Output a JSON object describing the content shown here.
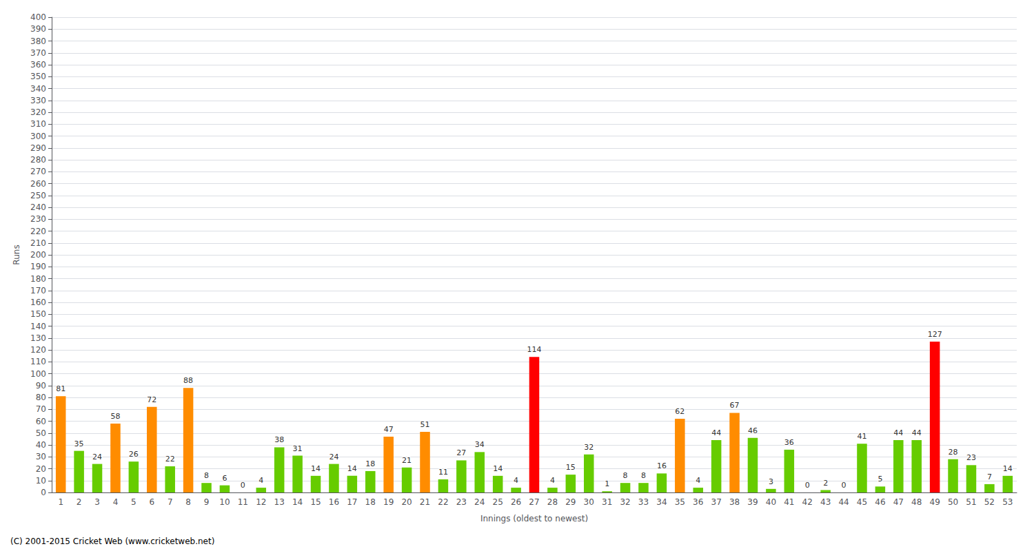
{
  "chart_data": {
    "type": "bar",
    "categories": [
      1,
      2,
      3,
      4,
      5,
      6,
      7,
      8,
      9,
      10,
      11,
      12,
      13,
      14,
      15,
      16,
      17,
      18,
      19,
      20,
      21,
      22,
      23,
      24,
      25,
      26,
      27,
      28,
      29,
      30,
      31,
      32,
      33,
      34,
      35,
      36,
      37,
      38,
      39,
      40,
      41,
      42,
      43,
      44,
      45,
      46,
      47,
      48,
      49,
      50,
      51,
      52,
      53
    ],
    "values": [
      81,
      35,
      24,
      58,
      26,
      72,
      22,
      88,
      8,
      6,
      0,
      4,
      38,
      31,
      14,
      24,
      14,
      18,
      47,
      21,
      51,
      11,
      27,
      34,
      14,
      4,
      114,
      4,
      15,
      32,
      1,
      8,
      8,
      16,
      62,
      4,
      44,
      67,
      46,
      3,
      36,
      0,
      2,
      0,
      41,
      5,
      44,
      44,
      127,
      28,
      23,
      7,
      14
    ],
    "colors": [
      "#ff8c00",
      "#66cc00",
      "#66cc00",
      "#ff8c00",
      "#66cc00",
      "#ff8c00",
      "#66cc00",
      "#ff8c00",
      "#66cc00",
      "#66cc00",
      "#66cc00",
      "#66cc00",
      "#66cc00",
      "#66cc00",
      "#66cc00",
      "#66cc00",
      "#66cc00",
      "#66cc00",
      "#ff8c00",
      "#66cc00",
      "#ff8c00",
      "#66cc00",
      "#66cc00",
      "#66cc00",
      "#66cc00",
      "#66cc00",
      "#ff0000",
      "#66cc00",
      "#66cc00",
      "#66cc00",
      "#66cc00",
      "#66cc00",
      "#66cc00",
      "#66cc00",
      "#ff8c00",
      "#66cc00",
      "#66cc00",
      "#ff8c00",
      "#66cc00",
      "#66cc00",
      "#66cc00",
      "#66cc00",
      "#66cc00",
      "#66cc00",
      "#66cc00",
      "#66cc00",
      "#66cc00",
      "#66cc00",
      "#ff0000",
      "#66cc00",
      "#66cc00",
      "#66cc00",
      "#66cc00"
    ],
    "xlabel": "Innings (oldest to newest)",
    "ylabel": "Runs",
    "ylim": [
      0,
      400
    ],
    "yticks": [
      0,
      10,
      20,
      30,
      40,
      50,
      60,
      70,
      80,
      90,
      100,
      110,
      120,
      130,
      140,
      150,
      160,
      170,
      180,
      190,
      200,
      210,
      220,
      230,
      240,
      250,
      260,
      270,
      280,
      290,
      300,
      310,
      320,
      330,
      340,
      350,
      360,
      370,
      380,
      390,
      400
    ],
    "grid": true,
    "data_labels": true,
    "annotations": [
      "(C) 2001-2015 Cricket Web (www.cricketweb.net)"
    ]
  }
}
